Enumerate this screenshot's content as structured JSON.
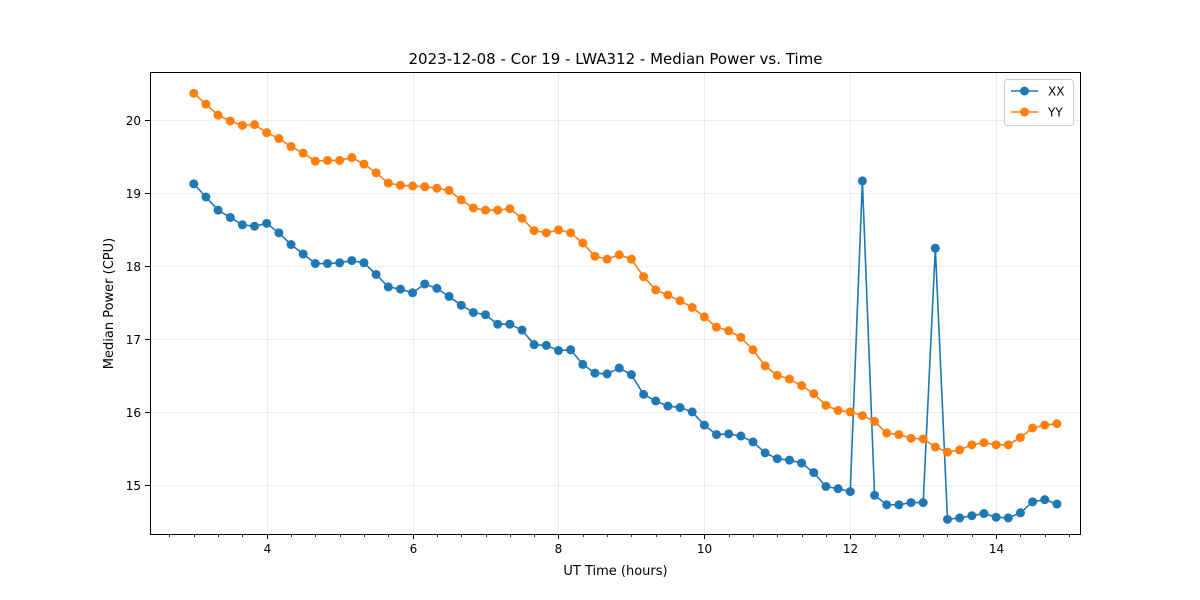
{
  "chart_data": {
    "type": "line",
    "title": "2023-12-08 - Cor 19 - LWA312 - Median Power vs. Time",
    "xlabel": "UT Time (hours)",
    "ylabel": "Median Power (CPU)",
    "xlim": [
      2.4,
      15.15
    ],
    "ylim": [
      14.33,
      20.65
    ],
    "xticks": [
      4,
      6,
      8,
      10,
      12,
      14
    ],
    "xtick_labels": [
      "4",
      "6",
      "8",
      "10",
      "12",
      "14"
    ],
    "x_minor_step": 0.333333,
    "yticks": [
      15,
      16,
      17,
      18,
      19,
      20
    ],
    "ytick_labels": [
      "15",
      "16",
      "17",
      "18",
      "19",
      "20"
    ],
    "grid": true,
    "legend": "top-right",
    "x": [
      3.0,
      3.1667,
      3.3333,
      3.5,
      3.6667,
      3.8333,
      4.0,
      4.1667,
      4.3333,
      4.5,
      4.6667,
      4.8333,
      5.0,
      5.1667,
      5.3333,
      5.5,
      5.6667,
      5.8333,
      6.0,
      6.1667,
      6.3333,
      6.5,
      6.6667,
      6.8333,
      7.0,
      7.1667,
      7.3333,
      7.5,
      7.6667,
      7.8333,
      8.0,
      8.1667,
      8.3333,
      8.5,
      8.6667,
      8.8333,
      9.0,
      9.1667,
      9.3333,
      9.5,
      9.6667,
      9.8333,
      10.0,
      10.1667,
      10.3333,
      10.5,
      10.6667,
      10.8333,
      11.0,
      11.1667,
      11.3333,
      11.5,
      11.6667,
      11.8333,
      12.0,
      12.1667,
      12.3333,
      12.5,
      12.6667,
      12.8333,
      13.0,
      13.1667,
      13.3333,
      13.5,
      13.6667,
      13.8333,
      14.0,
      14.1667,
      14.3333,
      14.5,
      14.6667,
      14.8333
    ],
    "series": [
      {
        "name": "XX",
        "color": "#1f77b4",
        "values": [
          19.12,
          18.94,
          18.76,
          18.66,
          18.56,
          18.54,
          18.58,
          18.45,
          18.29,
          18.16,
          18.03,
          18.03,
          18.04,
          18.07,
          18.04,
          17.88,
          17.71,
          17.68,
          17.63,
          17.75,
          17.69,
          17.58,
          17.46,
          17.36,
          17.33,
          17.2,
          17.2,
          17.12,
          16.92,
          16.91,
          16.84,
          16.85,
          16.65,
          16.53,
          16.52,
          16.6,
          16.51,
          16.24,
          16.15,
          16.08,
          16.06,
          16.0,
          15.82,
          15.69,
          15.7,
          15.67,
          15.59,
          15.44,
          15.36,
          15.34,
          15.3,
          15.17,
          14.98,
          14.95,
          14.91,
          19.16,
          14.86,
          14.73,
          14.73,
          14.76,
          14.76,
          18.24,
          14.53,
          14.55,
          14.58,
          14.61,
          14.56,
          14.55,
          14.62,
          14.77,
          14.8,
          14.74
        ]
      },
      {
        "name": "YY",
        "color": "#ff7f0e",
        "values": [
          20.36,
          20.21,
          20.06,
          19.98,
          19.92,
          19.93,
          19.82,
          19.74,
          19.63,
          19.54,
          19.43,
          19.44,
          19.44,
          19.48,
          19.39,
          19.27,
          19.13,
          19.1,
          19.09,
          19.08,
          19.06,
          19.03,
          18.9,
          18.79,
          18.76,
          18.76,
          18.78,
          18.65,
          18.48,
          18.45,
          18.49,
          18.45,
          18.31,
          18.13,
          18.09,
          18.15,
          18.09,
          17.85,
          17.67,
          17.6,
          17.52,
          17.43,
          17.3,
          17.16,
          17.11,
          17.02,
          16.85,
          16.63,
          16.5,
          16.45,
          16.36,
          16.25,
          16.09,
          16.02,
          16.0,
          15.95,
          15.87,
          15.71,
          15.69,
          15.64,
          15.63,
          15.52,
          15.45,
          15.48,
          15.55,
          15.58,
          15.55,
          15.55,
          15.65,
          15.78,
          15.82,
          15.84
        ]
      }
    ]
  }
}
